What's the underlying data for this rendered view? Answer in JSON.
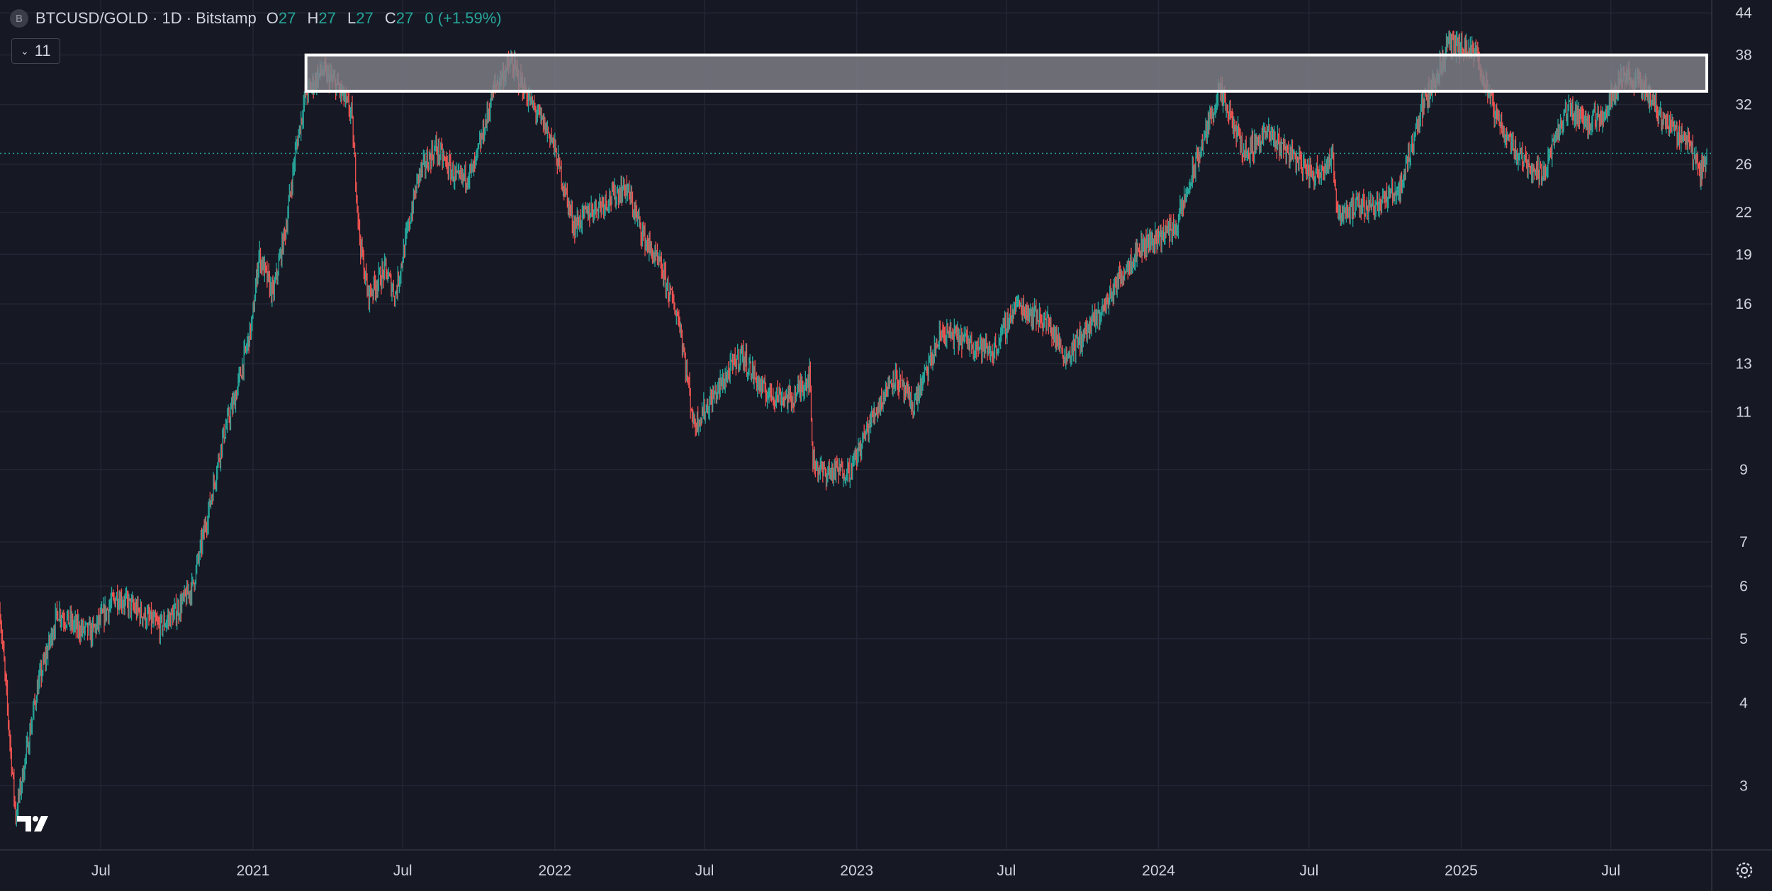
{
  "header": {
    "symbol_icon": "B",
    "symbol": "BTCUSD/GOLD",
    "interval": "1D",
    "exchange": "Bitstamp",
    "open_label": "O",
    "open": "27",
    "high_label": "H",
    "high": "27",
    "low_label": "L",
    "low": "27",
    "close_label": "C",
    "close": "27",
    "change": "0 (+1.59%)",
    "indicators_count": "11"
  },
  "colors": {
    "background": "#161824",
    "up": "#26a69a",
    "down": "#ef5350",
    "grid": "#232634",
    "zone_fill": "#808089",
    "zone_border": "#ffffff"
  },
  "icons": {
    "symbol": "bitstamp-logo-icon",
    "collapse": "chevron-down-icon",
    "brand": "tradingview-logo-icon",
    "settings": "gear-icon"
  },
  "chart_data": {
    "type": "candlestick",
    "scale": "log",
    "ylim": [
      2.4,
      46
    ],
    "y_ticks": [
      "44",
      "38",
      "32",
      "26",
      "22",
      "19",
      "16",
      "13",
      "11",
      "9",
      "7",
      "6",
      "5",
      "4",
      "3"
    ],
    "x_ticks": [
      "Jul",
      "2021",
      "Jul",
      "2022",
      "Jul",
      "2023",
      "Jul",
      "2024",
      "Jul",
      "2025",
      "Jul"
    ],
    "x_tick_dates": [
      "2020-07-01",
      "2021-01-01",
      "2021-07-01",
      "2022-01-01",
      "2022-07-01",
      "2023-01-01",
      "2023-07-01",
      "2024-01-01",
      "2024-07-01",
      "2025-01-01",
      "2025-07-01"
    ],
    "x_range": [
      "2020-03-01",
      "2025-10-31"
    ],
    "last_price": 27,
    "resistance_zone": {
      "from_date": "2021-03-06",
      "to_date": "2025-10-25",
      "low": 33.5,
      "high": 38
    },
    "series": [
      {
        "x": [
          "2020-03-01",
          "2020-03-20",
          "2020-04-15",
          "2020-05-10",
          "2020-06-01",
          "2020-06-20",
          "2020-07-20",
          "2020-08-15",
          "2020-09-10",
          "2020-10-01",
          "2020-10-20",
          "2020-11-10",
          "2020-11-25",
          "2020-12-10",
          "2020-12-31",
          "2021-01-08",
          "2021-01-25",
          "2021-02-10",
          "2021-02-21",
          "2021-03-05",
          "2021-03-25",
          "2021-04-14",
          "2021-04-30",
          "2021-05-10",
          "2021-05-20",
          "2021-06-10",
          "2021-06-22",
          "2021-07-20",
          "2021-08-10",
          "2021-09-06",
          "2021-09-25",
          "2021-10-20",
          "2021-11-09",
          "2021-12-04",
          "2021-12-28",
          "2022-01-24",
          "2022-02-10",
          "2022-03-28",
          "2022-04-20",
          "2022-05-10",
          "2022-06-01",
          "2022-06-18",
          "2022-07-10",
          "2022-08-14",
          "2022-09-10",
          "2022-10-15",
          "2022-11-05",
          "2022-11-09",
          "2022-11-21",
          "2022-12-25",
          "2023-01-20",
          "2023-02-15",
          "2023-03-10",
          "2023-04-14",
          "2023-05-20",
          "2023-06-15",
          "2023-07-13",
          "2023-08-20",
          "2023-09-11",
          "2023-10-23",
          "2023-11-20",
          "2023-12-10",
          "2024-01-23",
          "2024-02-15",
          "2024-03-14",
          "2024-04-15",
          "2024-05-10",
          "2024-06-10",
          "2024-07-05",
          "2024-07-29",
          "2024-08-05",
          "2024-09-06",
          "2024-10-01",
          "2024-10-20",
          "2024-11-12",
          "2024-12-05",
          "2024-12-17",
          "2025-01-20",
          "2025-02-10",
          "2025-03-10",
          "2025-04-08",
          "2025-05-10",
          "2025-06-05",
          "2025-06-22",
          "2025-07-14",
          "2025-08-10",
          "2025-09-01",
          "2025-10-05",
          "2025-10-17",
          "2025-10-25"
        ],
        "y": [
          5.5,
          2.7,
          4.2,
          5.5,
          5.2,
          5.1,
          5.8,
          5.5,
          5.2,
          5.5,
          6.0,
          8.0,
          10.0,
          11.5,
          15.0,
          19.0,
          16.5,
          21.0,
          27.0,
          33.0,
          36.0,
          34.0,
          31.0,
          20.0,
          16.5,
          18.0,
          16.5,
          25.0,
          27.5,
          24.5,
          25.5,
          34.0,
          37.0,
          32.0,
          28.5,
          21.0,
          22.0,
          24.0,
          20.0,
          18.0,
          15.0,
          10.5,
          11.5,
          13.5,
          11.8,
          11.5,
          12.5,
          9.3,
          8.9,
          9.0,
          10.8,
          12.5,
          11.2,
          14.5,
          14.0,
          13.5,
          16.0,
          15.0,
          13.3,
          15.5,
          18.0,
          19.5,
          21.0,
          26.0,
          33.5,
          27.0,
          29.0,
          27.0,
          25.0,
          26.5,
          22.0,
          22.5,
          23.0,
          24.0,
          31.0,
          36.0,
          39.5,
          38.0,
          31.0,
          27.0,
          25.0,
          31.5,
          30.0,
          31.0,
          35.5,
          34.0,
          30.5,
          28.0,
          25.0,
          27.0
        ]
      }
    ]
  }
}
